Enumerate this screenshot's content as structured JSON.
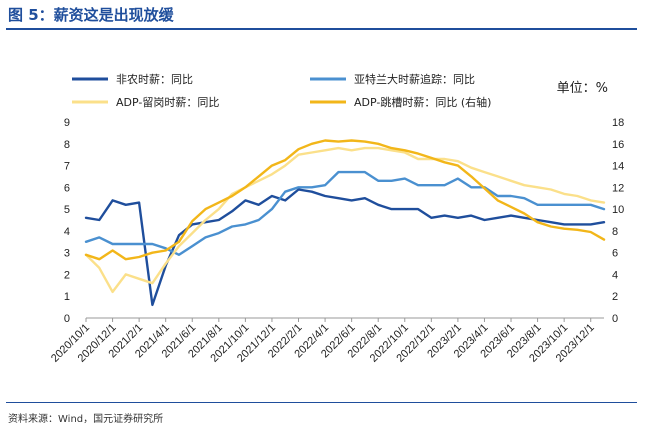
{
  "figure": {
    "title": "图 5：薪资这是出现放缓",
    "source": "资料来源：Wind，国元证券研究所",
    "unit": "单位：%"
  },
  "chart_data": {
    "type": "line",
    "title": "",
    "x": [
      "2020/10/1",
      "2020/11/1",
      "2020/12/1",
      "2021/1/1",
      "2021/2/1",
      "2021/3/1",
      "2021/4/1",
      "2021/5/1",
      "2021/6/1",
      "2021/7/1",
      "2021/8/1",
      "2021/9/1",
      "2021/10/1",
      "2021/11/1",
      "2021/12/1",
      "2022/1/1",
      "2022/2/1",
      "2022/3/1",
      "2022/4/1",
      "2022/5/1",
      "2022/6/1",
      "2022/7/1",
      "2022/8/1",
      "2022/9/1",
      "2022/10/1",
      "2022/11/1",
      "2022/12/1",
      "2023/1/1",
      "2023/2/1",
      "2023/3/1",
      "2023/4/1",
      "2023/5/1",
      "2023/6/1",
      "2023/7/1",
      "2023/8/1",
      "2023/9/1",
      "2023/10/1",
      "2023/11/1",
      "2023/12/1",
      "2024/1/1"
    ],
    "tick_labels": [
      "2020/10/1",
      "2020/12/1",
      "2021/2/1",
      "2021/4/1",
      "2021/6/1",
      "2021/8/1",
      "2021/10/1",
      "2021/12/1",
      "2022/2/1",
      "2022/4/1",
      "2022/6/1",
      "2022/8/1",
      "2022/10/1",
      "2022/12/1",
      "2023/2/1",
      "2023/4/1",
      "2023/6/1",
      "2023/8/1",
      "2023/10/1",
      "2023/12/1"
    ],
    "y_left": {
      "min": 0,
      "max": 9,
      "ticks": [
        0,
        1,
        2,
        3,
        4,
        5,
        6,
        7,
        8,
        9
      ]
    },
    "y_right": {
      "min": 0,
      "max": 18,
      "ticks": [
        0,
        2,
        4,
        6,
        8,
        10,
        12,
        14,
        16,
        18
      ]
    },
    "legend_placement": "top",
    "series": [
      {
        "name": "非农时薪：同比",
        "color": "#1f4e9c",
        "axis": "left",
        "values": [
          4.6,
          4.5,
          5.4,
          5.2,
          5.3,
          0.6,
          2.4,
          3.8,
          4.3,
          4.4,
          4.5,
          4.9,
          5.4,
          5.2,
          5.6,
          5.4,
          5.9,
          5.8,
          5.6,
          5.5,
          5.4,
          5.5,
          5.2,
          5.0,
          5.0,
          5.0,
          4.6,
          4.7,
          4.6,
          4.7,
          4.5,
          4.6,
          4.7,
          4.6,
          4.5,
          4.4,
          4.3,
          4.3,
          4.3,
          4.4
        ]
      },
      {
        "name": "亚特兰大时薪追踪：同比",
        "color": "#4a90d0",
        "axis": "left",
        "values": [
          3.5,
          3.7,
          3.4,
          3.4,
          3.4,
          3.4,
          3.2,
          2.9,
          3.3,
          3.7,
          3.9,
          4.2,
          4.3,
          4.5,
          5.0,
          5.8,
          6.0,
          6.0,
          6.1,
          6.7,
          6.7,
          6.7,
          6.3,
          6.3,
          6.4,
          6.1,
          6.1,
          6.1,
          6.4,
          6.0,
          6.0,
          5.6,
          5.6,
          5.5,
          5.2,
          5.2,
          5.2,
          5.2,
          5.2,
          5.0
        ]
      },
      {
        "name": "ADP-留岗时薪：同比",
        "color": "#fbe08a",
        "axis": "left",
        "values": [
          2.9,
          2.3,
          1.2,
          2.0,
          1.8,
          1.6,
          2.5,
          3.3,
          3.9,
          4.5,
          5.0,
          5.7,
          6.0,
          6.3,
          6.6,
          7.0,
          7.5,
          7.6,
          7.7,
          7.8,
          7.7,
          7.8,
          7.8,
          7.7,
          7.6,
          7.3,
          7.3,
          7.3,
          7.2,
          6.9,
          6.7,
          6.5,
          6.3,
          6.1,
          6.0,
          5.9,
          5.7,
          5.6,
          5.4,
          5.3
        ]
      },
      {
        "name": "ADP-跳槽时薪：同比 (右轴)",
        "color": "#f2b619",
        "axis": "right",
        "values": [
          5.8,
          5.4,
          6.2,
          5.4,
          5.6,
          6.0,
          6.2,
          7.0,
          8.9,
          10.0,
          10.6,
          11.2,
          12.0,
          13.0,
          14.0,
          14.5,
          15.5,
          16.0,
          16.3,
          16.2,
          16.3,
          16.2,
          16.0,
          15.6,
          15.4,
          15.1,
          14.7,
          14.3,
          14.0,
          13.0,
          11.9,
          10.8,
          10.2,
          9.6,
          8.8,
          8.4,
          8.2,
          8.1,
          7.9,
          7.2
        ]
      }
    ]
  }
}
